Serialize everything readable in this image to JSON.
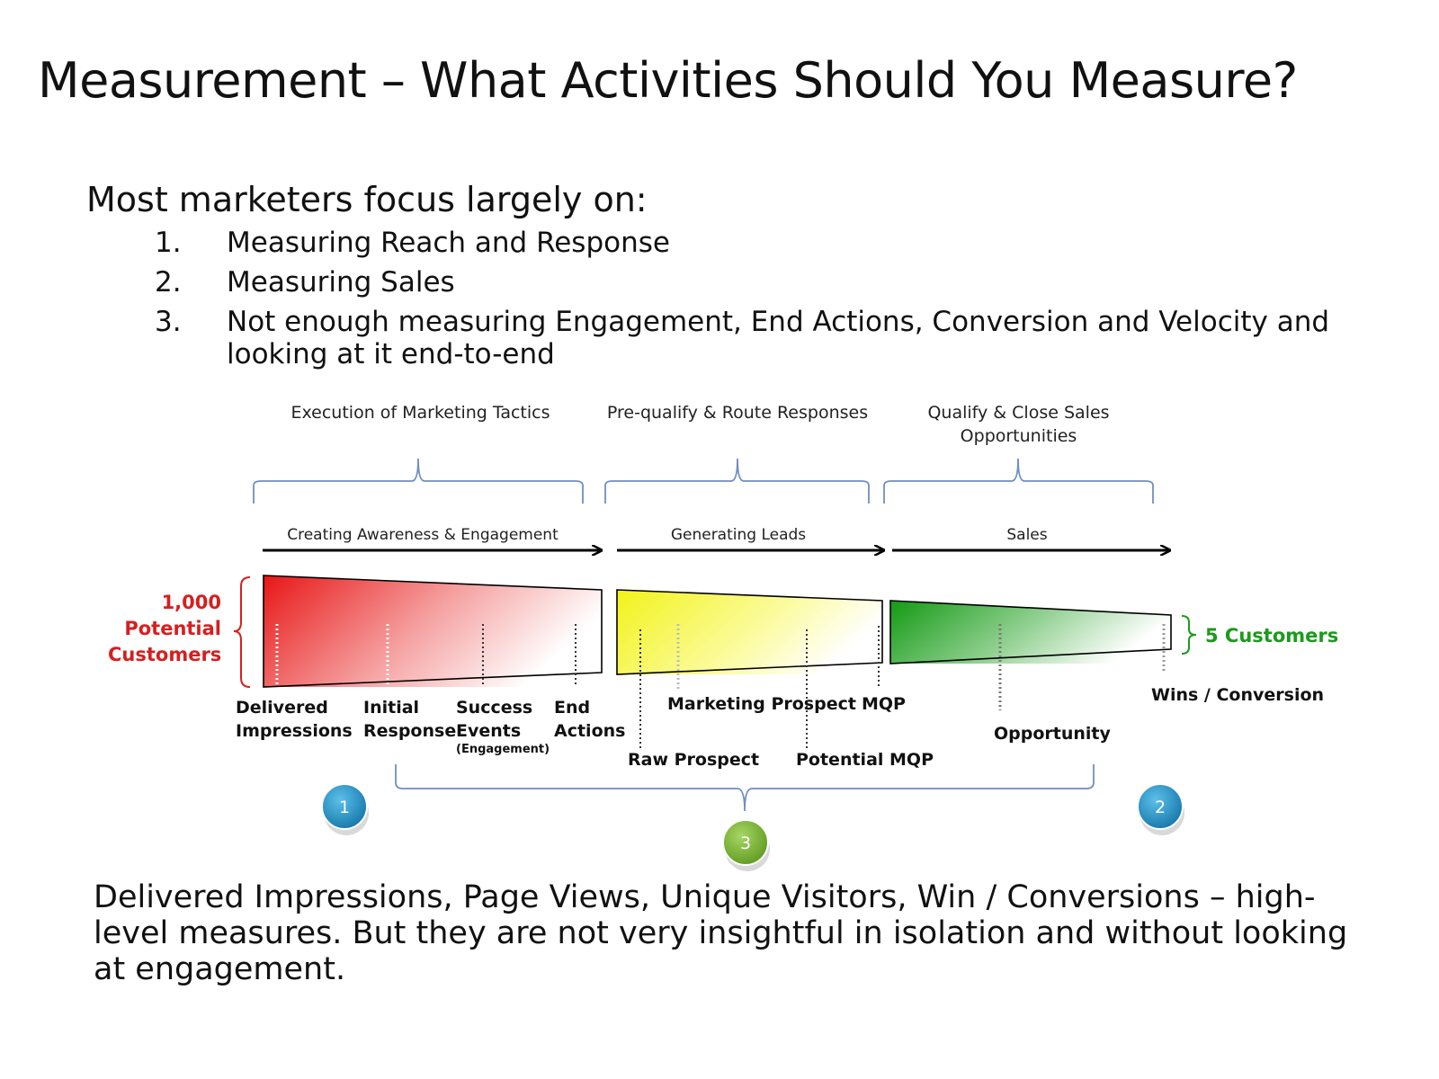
{
  "slide": {
    "title": "Measurement – What Activities Should You Measure?",
    "intro": "Most marketers focus largely on:",
    "list": [
      {
        "num": "1.",
        "text": "Measuring Reach and Response"
      },
      {
        "num": "2.",
        "text": "Measuring Sales"
      },
      {
        "num": "3.",
        "text": "Not enough measuring Engagement, End Actions, Conversion and Velocity and",
        "text2": "looking at it end-to-end"
      }
    ],
    "footer": "Delivered Impressions, Page Views, Unique Visitors, Win / Conversions – high-level measures. But they are not very insightful in isolation and without looking at engagement."
  },
  "diagram": {
    "phases": [
      {
        "label": "Execution of Marketing Tactics"
      },
      {
        "label": "Pre-qualify & Route Responses"
      },
      {
        "label": "Qualify & Close Sales",
        "label2": "Opportunities"
      }
    ],
    "stages": [
      {
        "label": "Creating Awareness & Engagement"
      },
      {
        "label": "Generating Leads"
      },
      {
        "label": "Sales"
      }
    ],
    "start": {
      "line1": "1,000",
      "line2": "Potential",
      "line3": "Customers"
    },
    "end": "5 Customers",
    "metrics": {
      "delivered": {
        "line1": "Delivered",
        "line2": "Impressions"
      },
      "initial": {
        "line1": "Initial",
        "line2": "Response"
      },
      "success": {
        "line1": "Success",
        "line2": "Events",
        "note": "(Engagement)"
      },
      "end_actions": {
        "line1": "End",
        "line2": "Actions"
      },
      "marketing_prospect": "Marketing Prospect",
      "mqp": "MQP",
      "raw_prospect": "Raw Prospect",
      "potential_mqp": "Potential MQP",
      "opportunity": "Opportunity",
      "wins": "Wins / Conversion"
    },
    "badges": [
      {
        "num": "1",
        "color": "#1e8fc4"
      },
      {
        "num": "3",
        "color": "#7ab532"
      },
      {
        "num": "2",
        "color": "#1e8fc4"
      }
    ]
  }
}
